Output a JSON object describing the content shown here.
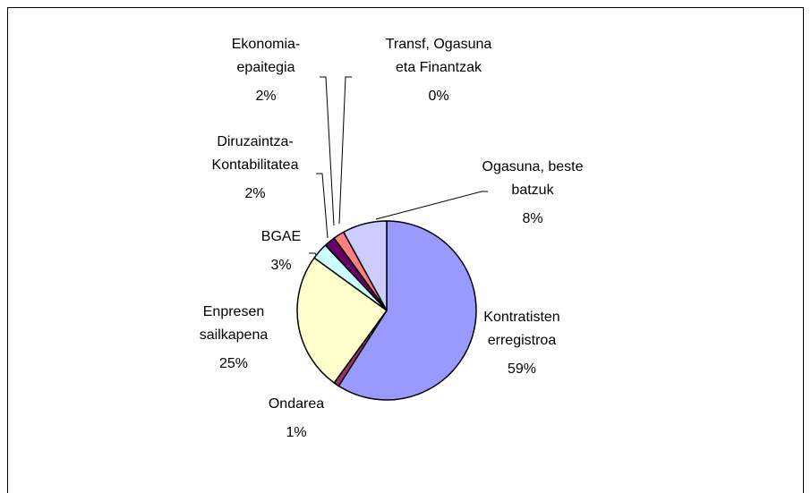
{
  "chart_data": {
    "type": "pie",
    "categories": [
      "Kontratisten erregistroa",
      "Ondarea",
      "Enpresen sailkapena",
      "BGAE",
      "Diruzaintza-Kontabilitatea",
      "Ekonomia-epaitegia",
      "Transf, Ogasuna eta Finantzak",
      "Ogasuna, beste batzuk"
    ],
    "values": [
      59,
      1,
      25,
      3,
      2,
      2,
      0,
      8
    ],
    "value_labels": [
      "59%",
      "1%",
      "25%",
      "3%",
      "2%",
      "2%",
      "0%",
      "8%"
    ],
    "colors": [
      "#9999ff",
      "#993366",
      "#ffffcc",
      "#ccffff",
      "#660066",
      "#ff8080",
      "#0066cc",
      "#ccccff"
    ]
  }
}
